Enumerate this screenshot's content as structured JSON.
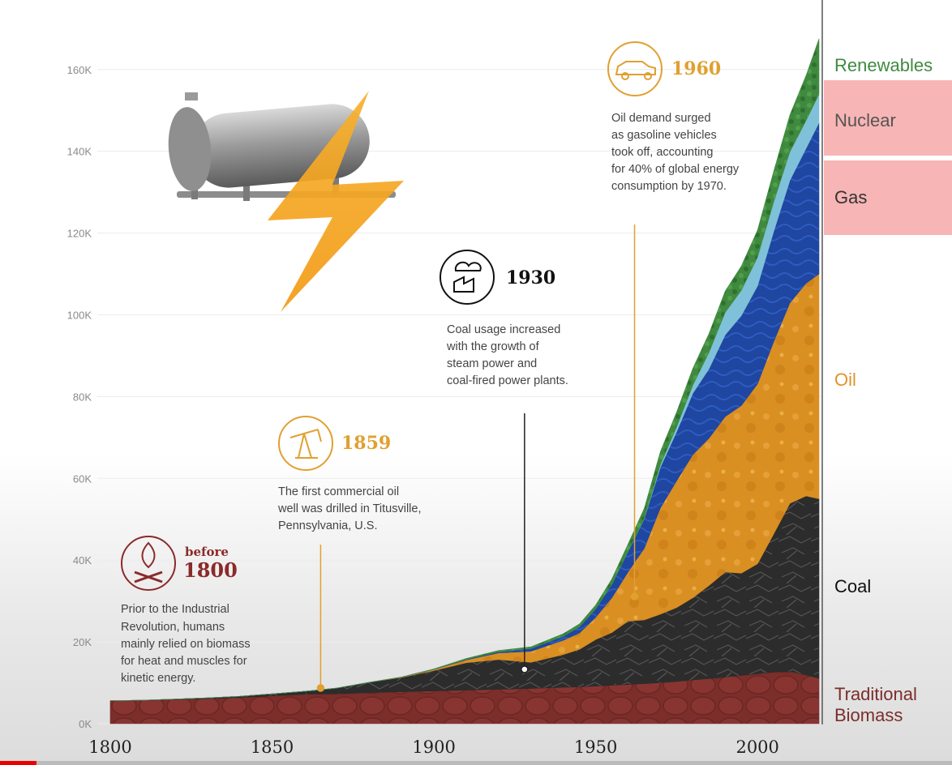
{
  "chart_data": {
    "type": "area",
    "stacked": true,
    "x": [
      1800,
      1810,
      1820,
      1830,
      1840,
      1850,
      1860,
      1870,
      1880,
      1890,
      1900,
      1910,
      1920,
      1930,
      1940,
      1945,
      1950,
      1955,
      1960,
      1965,
      1970,
      1975,
      1980,
      1985,
      1990,
      1995,
      2000,
      2005,
      2010,
      2015,
      2019
    ],
    "series": [
      {
        "name": "Traditional Biomass",
        "values": [
          5600,
          5700,
          5900,
          6100,
          6400,
          6800,
          7200,
          7300,
          7600,
          7800,
          8000,
          8200,
          8400,
          8600,
          8900,
          9000,
          9200,
          9400,
          9600,
          9800,
          10000,
          10300,
          10700,
          11000,
          11400,
          11800,
          12200,
          12600,
          12800,
          11900,
          11100
        ]
      },
      {
        "name": "Coal",
        "values": [
          0,
          50,
          100,
          200,
          300,
          500,
          700,
          1400,
          2500,
          3500,
          5000,
          6700,
          7300,
          6400,
          8000,
          9200,
          11400,
          12900,
          15500,
          15600,
          16800,
          18100,
          20100,
          22800,
          25700,
          25000,
          26900,
          33800,
          41100,
          43800,
          43900
        ]
      },
      {
        "name": "Oil",
        "values": [
          0,
          0,
          0,
          0,
          0,
          0,
          0,
          5,
          30,
          100,
          250,
          700,
          1600,
          2700,
          3500,
          4000,
          5400,
          8500,
          12000,
          17500,
          26000,
          31000,
          35000,
          36000,
          38000,
          41000,
          44000,
          47000,
          49000,
          52000,
          55000
        ]
      },
      {
        "name": "Gas",
        "values": [
          0,
          0,
          0,
          0,
          0,
          0,
          0,
          0,
          0,
          20,
          50,
          150,
          300,
          700,
          1000,
          1500,
          2100,
          3300,
          5000,
          7200,
          10000,
          12000,
          15000,
          17000,
          20000,
          22000,
          24000,
          27000,
          30000,
          33000,
          37000
        ]
      },
      {
        "name": "Nuclear",
        "values": [
          0,
          0,
          0,
          0,
          0,
          0,
          0,
          0,
          0,
          0,
          0,
          0,
          0,
          0,
          0,
          0,
          0,
          0,
          20,
          150,
          600,
          1200,
          2000,
          4000,
          5500,
          6200,
          7000,
          7200,
          7000,
          6800,
          7000
        ]
      },
      {
        "name": "Renewables",
        "values": [
          0,
          0,
          0,
          0,
          0,
          0,
          0,
          0,
          0,
          0,
          100,
          200,
          300,
          400,
          600,
          700,
          900,
          1300,
          1800,
          2400,
          3200,
          3600,
          4100,
          4600,
          5200,
          5900,
          6600,
          7500,
          9000,
          11000,
          13500
        ]
      }
    ],
    "yticks": [
      "0K",
      "20K",
      "40K",
      "60K",
      "80K",
      "100K",
      "120K",
      "140K",
      "160K"
    ],
    "xticks": [
      "1800",
      "1850",
      "1900",
      "1950",
      "2000"
    ],
    "ylim": [
      0,
      177000
    ],
    "xlim": [
      1800,
      2020
    ],
    "colors": {
      "Traditional Biomass": "#7b2e2a",
      "Coal": "#2a2a2a",
      "Oil": "#d98f22",
      "Gas": "#1f46a0",
      "Nuclear": "#7fc1d9",
      "Renewables": "#3f8a3f"
    },
    "label_colors": {
      "Traditional Biomass": "#7b2e2a",
      "Coal": "#111111",
      "Oil": "#e0932a",
      "Gas": "#333333",
      "Nuclear": "#555555",
      "Renewables": "#3f8a3f"
    },
    "highlighted_labels": [
      "Nuclear",
      "Gas"
    ],
    "highlight_color": "#f7b5b5",
    "annotations": [
      {
        "id": "before-1800",
        "pre": "before",
        "year": "1800",
        "color": "#8b2a2a",
        "icon": "campfire-icon",
        "lines": [
          "Prior to the Industrial",
          "Revolution, humans",
          "mainly relied on biomass",
          "for heat and muscles for",
          "kinetic energy."
        ]
      },
      {
        "id": "1859",
        "pre": "",
        "year": "1859",
        "color": "#e0a030",
        "icon": "oil-pump-icon",
        "line_color": "#e0a030",
        "x_at": 1865,
        "lines": [
          "The first commercial oil",
          "well was drilled in Titusville,",
          "Pennsylvania, U.S."
        ]
      },
      {
        "id": "1930",
        "pre": "",
        "year": "1930",
        "color": "#111111",
        "icon": "factory-icon",
        "line_color": "#222222",
        "x_at": 1928,
        "lines": [
          "Coal usage increased",
          "with the growth of",
          "steam power and",
          "coal-fired power plants."
        ]
      },
      {
        "id": "1960",
        "pre": "",
        "year": "1960",
        "color": "#e0a030",
        "icon": "car-icon",
        "line_color": "#e0a030",
        "x_at": 1962,
        "lines": [
          "Oil demand surged",
          "as gasoline vehicles",
          "took off, accounting",
          "for 40% of global energy",
          "consumption by 1970."
        ]
      }
    ],
    "illustration": {
      "icon": "oil-tank-lightning-icon"
    }
  },
  "video": {
    "progress": 0.038
  }
}
